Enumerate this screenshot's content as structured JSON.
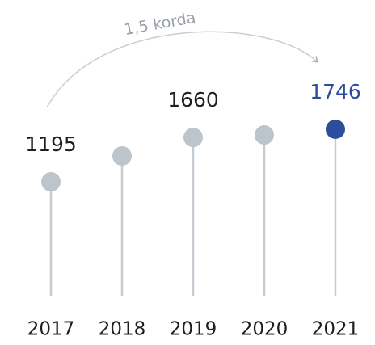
{
  "chart_data": {
    "type": "lollipop",
    "annotation": "1,5 korda",
    "categories": [
      "2017",
      "2018",
      "2019",
      "2020",
      "2021"
    ],
    "values": [
      1195,
      1466,
      1660,
      1686,
      1746
    ],
    "value_labels": [
      "1195",
      null,
      "1660",
      null,
      "1746"
    ],
    "color": "#bcc4cc",
    "colors": [
      "#bcc4cc",
      "#bcc4cc",
      "#bcc4cc",
      "#bcc4cc",
      "#2d4d9c"
    ],
    "ylim": [
      0,
      2000
    ]
  }
}
